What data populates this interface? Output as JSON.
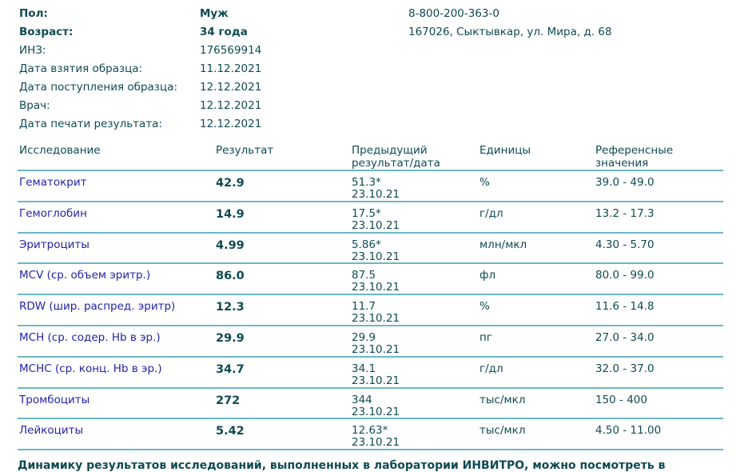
{
  "patient": {
    "fields": [
      {
        "label": "Пол:",
        "value": "Муж",
        "bold": true
      },
      {
        "label": "Возраст:",
        "value": "34 года",
        "bold": true
      },
      {
        "label": "ИНЗ:",
        "value": "176569914",
        "bold": false
      },
      {
        "label": "Дата взятия образца:",
        "value": "11.12.2021",
        "bold": false
      },
      {
        "label": "Дата поступления образца:",
        "value": "12.12.2021",
        "bold": false
      },
      {
        "label": "Врач:",
        "value": "12.12.2021",
        "bold": false
      },
      {
        "label": "Дата печати результата:",
        "value": "12.12.2021",
        "bold": false
      }
    ]
  },
  "lab": {
    "phone": "8-800-200-363-0",
    "address": "167026, Сыктывкар, ул. Мира, д. 68"
  },
  "table": {
    "headers": {
      "test": "Исследование",
      "result": "Результат",
      "previous_1": "Предыдущий",
      "previous_2": "результат/дата",
      "units": "Единицы",
      "reference_1": "Референсные",
      "reference_2": "значения"
    },
    "rows": [
      {
        "test": "Гематокрит",
        "result": "42.9",
        "prev": "51.3*",
        "prev_date": "23.10.21",
        "units": "%",
        "ref": "39.0 - 49.0"
      },
      {
        "test": "Гемоглобин",
        "result": "14.9",
        "prev": "17.5*",
        "prev_date": "23.10.21",
        "units": "г/дл",
        "ref": "13.2 - 17.3"
      },
      {
        "test": "Эритроциты",
        "result": "4.99",
        "prev": "5.86*",
        "prev_date": "23.10.21",
        "units": "млн/мкл",
        "ref": "4.30 - 5.70"
      },
      {
        "test": "MCV (ср. объем эритр.)",
        "result": "86.0",
        "prev": "87.5",
        "prev_date": "23.10.21",
        "units": "фл",
        "ref": "80.0 - 99.0"
      },
      {
        "test": "RDW (шир. распред. эритр)",
        "result": "12.3",
        "prev": "11.7",
        "prev_date": "23.10.21",
        "units": "%",
        "ref": "11.6 - 14.8"
      },
      {
        "test": "MCH (ср. содер. Hb в эр.)",
        "result": "29.9",
        "prev": "29.9",
        "prev_date": "23.10.21",
        "units": "пг",
        "ref": "27.0 - 34.0"
      },
      {
        "test": "MCHC (ср. конц. Hb в эр.)",
        "result": "34.7",
        "prev": "34.1",
        "prev_date": "23.10.21",
        "units": "г/дл",
        "ref": "32.0 - 37.0"
      },
      {
        "test": "Тромбоциты",
        "result": "272",
        "prev": "344",
        "prev_date": "23.10.21",
        "units": "тыс/мкл",
        "ref": "150 - 400"
      },
      {
        "test": "Лейкоциты",
        "result": "5.42",
        "prev": "12.63*",
        "prev_date": "23.10.21",
        "units": "тыс/мкл",
        "ref": "4.50 - 11.00"
      }
    ]
  },
  "footer": {
    "text": "Динамику результатов исследований, выполненных в лаборатории ИНВИТРО, можно посмотреть в"
  }
}
